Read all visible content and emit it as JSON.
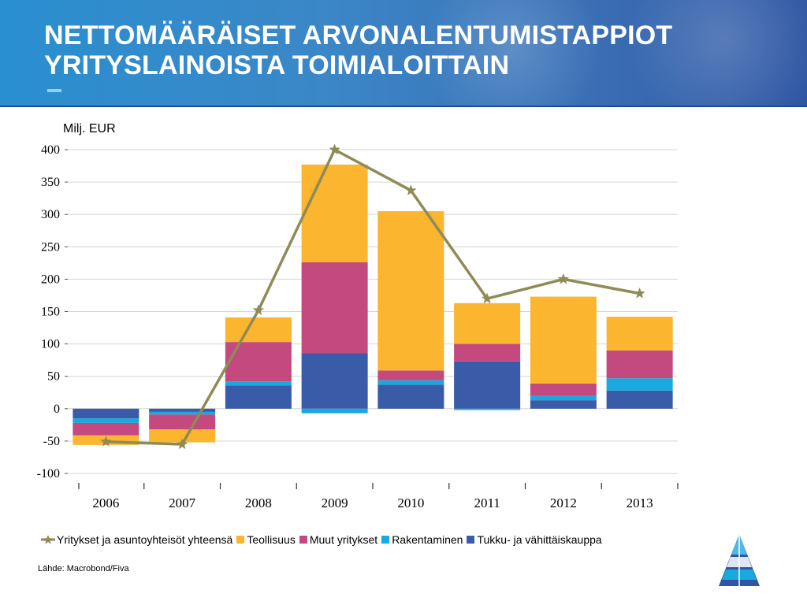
{
  "header": {
    "title_line1": "NETTOMÄÄRÄISET ARVONALENTUMISTAPPIOT",
    "title_line2": "YRITYSLAINOISTA TOIMIALOITTAIN"
  },
  "chart_data": {
    "type": "bar",
    "stacked": true,
    "ylabel": "Milj. EUR",
    "ylim": [
      -100,
      400
    ],
    "yticks": [
      400,
      350,
      300,
      250,
      200,
      150,
      100,
      50,
      0,
      -50,
      -100
    ],
    "grid": true,
    "legend_position": "bottom",
    "categories": [
      "2006",
      "2007",
      "2008",
      "2009",
      "2010",
      "2011",
      "2012",
      "2013"
    ],
    "series": [
      {
        "name": "Tukku- ja vähittäiskauppa",
        "color": "#3a5ba8",
        "values": [
          -15,
          -5,
          36,
          86,
          37,
          73,
          13,
          28
        ]
      },
      {
        "name": "Rakentaminen",
        "color": "#19a9df",
        "values": [
          -7,
          -4,
          6,
          -7,
          7,
          -2,
          7,
          19
        ]
      },
      {
        "name": "Muut yritykset",
        "color": "#c3497f",
        "values": [
          -19,
          -23,
          61,
          140,
          15,
          27,
          19,
          43
        ]
      },
      {
        "name": "Teollisuus",
        "color": "#fbb52f",
        "values": [
          -15,
          -20,
          38,
          151,
          246,
          63,
          134,
          52
        ]
      }
    ],
    "line": {
      "name": "Yritykset ja asuntoyhteisöt yhteensä",
      "color": "#8f8b57",
      "marker": "star",
      "values": [
        -51,
        -55,
        152,
        400,
        337,
        170,
        200,
        178
      ]
    }
  },
  "legend": {
    "items": [
      {
        "label": "Yritykset ja asuntoyhteisöt yhteensä",
        "color": "#8f8b57",
        "marker": "star"
      },
      {
        "label": "Teollisuus",
        "color": "#fbb52f",
        "marker": "square"
      },
      {
        "label": "Muut yritykset",
        "color": "#c3497f",
        "marker": "square"
      },
      {
        "label": "Rakentaminen",
        "color": "#19a9df",
        "marker": "square"
      },
      {
        "label": "Tukku- ja vähittäiskauppa",
        "color": "#3a5ba8",
        "marker": "square"
      }
    ]
  },
  "source": "Lähde: Macrobond/Fiva",
  "logo": {
    "icon": "triangle-logo-icon"
  }
}
